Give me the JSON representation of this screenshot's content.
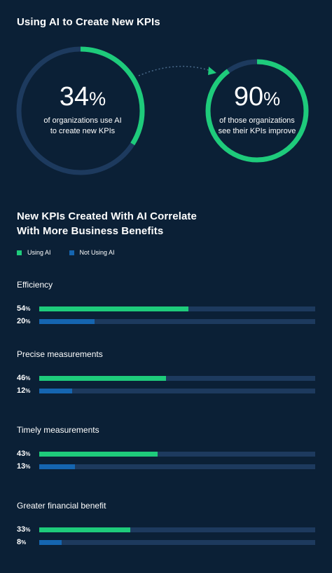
{
  "colors": {
    "background": "#0b2036",
    "using_ai": "#1ecb7b",
    "not_using_ai": "#1565b0",
    "track": "#1d3a5e"
  },
  "top_section": {
    "title": "Using AI to Create New KPIs",
    "stat1": {
      "value": 34,
      "number": "34",
      "pct": "%",
      "line1": "of organizations use AI",
      "line2": "to create new KPIs"
    },
    "stat2": {
      "value": 90,
      "number": "90",
      "pct": "%",
      "line1": "of those organizations",
      "line2": "see their KPIs improve"
    }
  },
  "chart_section": {
    "title_line1": "New KPIs Created With AI Correlate",
    "title_line2": "With More Business Benefits",
    "legend": {
      "using_ai": "Using AI",
      "not_using_ai": "Not Using AI"
    }
  },
  "chart_data": {
    "type": "bar",
    "orientation": "horizontal",
    "title": "New KPIs Created With AI Correlate With More Business Benefits",
    "categories": [
      "Efficiency",
      "Precise measurements",
      "Timely measurements",
      "Greater financial benefit"
    ],
    "series": [
      {
        "name": "Using AI",
        "values": [
          54,
          46,
          43,
          33
        ]
      },
      {
        "name": "Not Using AI",
        "values": [
          20,
          12,
          13,
          8
        ]
      }
    ],
    "xlim": [
      0,
      100
    ],
    "unit": "%",
    "legend_position": "top-left",
    "grid": false
  }
}
